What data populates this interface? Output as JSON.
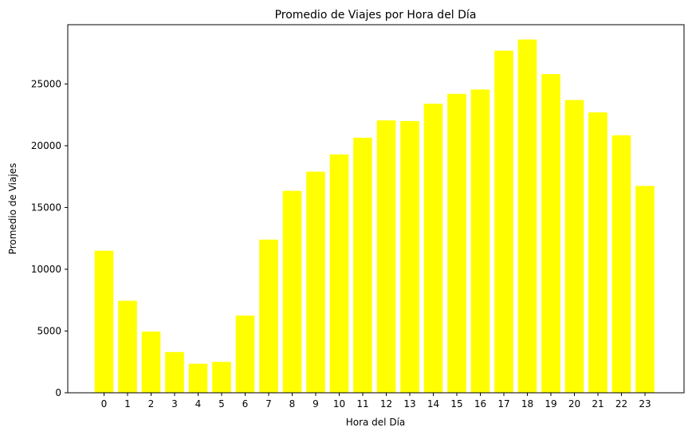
{
  "chart_data": {
    "type": "bar",
    "title": "Promedio de Viajes por Hora del Día",
    "xlabel": "Hora del Día",
    "ylabel": "Promedio de Viajes",
    "categories": [
      "0",
      "1",
      "2",
      "3",
      "4",
      "5",
      "6",
      "7",
      "8",
      "9",
      "10",
      "11",
      "12",
      "13",
      "14",
      "15",
      "16",
      "17",
      "18",
      "19",
      "20",
      "21",
      "22",
      "23"
    ],
    "values": [
      11500,
      7450,
      4950,
      3300,
      2350,
      2500,
      6250,
      12400,
      16350,
      17900,
      19300,
      20650,
      22050,
      22000,
      23400,
      24200,
      24550,
      27700,
      28600,
      25800,
      23700,
      22700,
      20850,
      16750
    ],
    "yticks": [
      "0",
      "5000",
      "10000",
      "15000",
      "20000",
      "25000"
    ],
    "ylim": [
      0,
      29800
    ],
    "bar_color": "#ffff00",
    "grid": false,
    "legend": "none"
  }
}
